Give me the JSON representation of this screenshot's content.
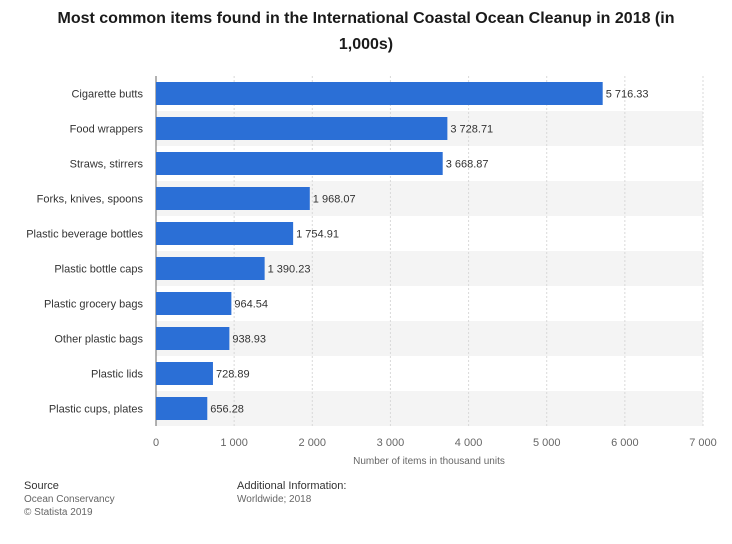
{
  "chart_data": {
    "type": "bar",
    "orientation": "horizontal",
    "title": "Most common items found in the International Coastal Ocean Cleanup in 2018 (in 1,000s)",
    "xlabel": "Number of items in thousand units",
    "ylabel": "",
    "xlim": [
      0,
      7000
    ],
    "xticks": [
      0,
      1000,
      2000,
      3000,
      4000,
      5000,
      6000,
      7000
    ],
    "xtick_labels": [
      "0",
      "1 000",
      "2 000",
      "3 000",
      "4 000",
      "5 000",
      "6 000",
      "7 000"
    ],
    "categories": [
      "Cigarette butts",
      "Food wrappers",
      "Straws, stirrers",
      "Forks, knives, spoons",
      "Plastic beverage bottles",
      "Plastic bottle caps",
      "Plastic grocery bags",
      "Other plastic bags",
      "Plastic lids",
      "Plastic cups, plates"
    ],
    "values": [
      5716.33,
      3728.71,
      3668.87,
      1968.07,
      1754.91,
      1390.23,
      964.54,
      938.93,
      728.89,
      656.28
    ],
    "value_labels": [
      "5 716.33",
      "3 728.71",
      "3 668.87",
      "1 968.07",
      "1 754.91",
      "1 390.23",
      "964.54",
      "938.93",
      "728.89",
      "656.28"
    ],
    "bar_color": "#2b6fd6",
    "grid": true
  },
  "footer": {
    "source_label": "Source",
    "source_line1": "Ocean Conservancy",
    "source_line2": "© Statista 2019",
    "info_label": "Additional Information:",
    "info_line1": "Worldwide; 2018"
  }
}
